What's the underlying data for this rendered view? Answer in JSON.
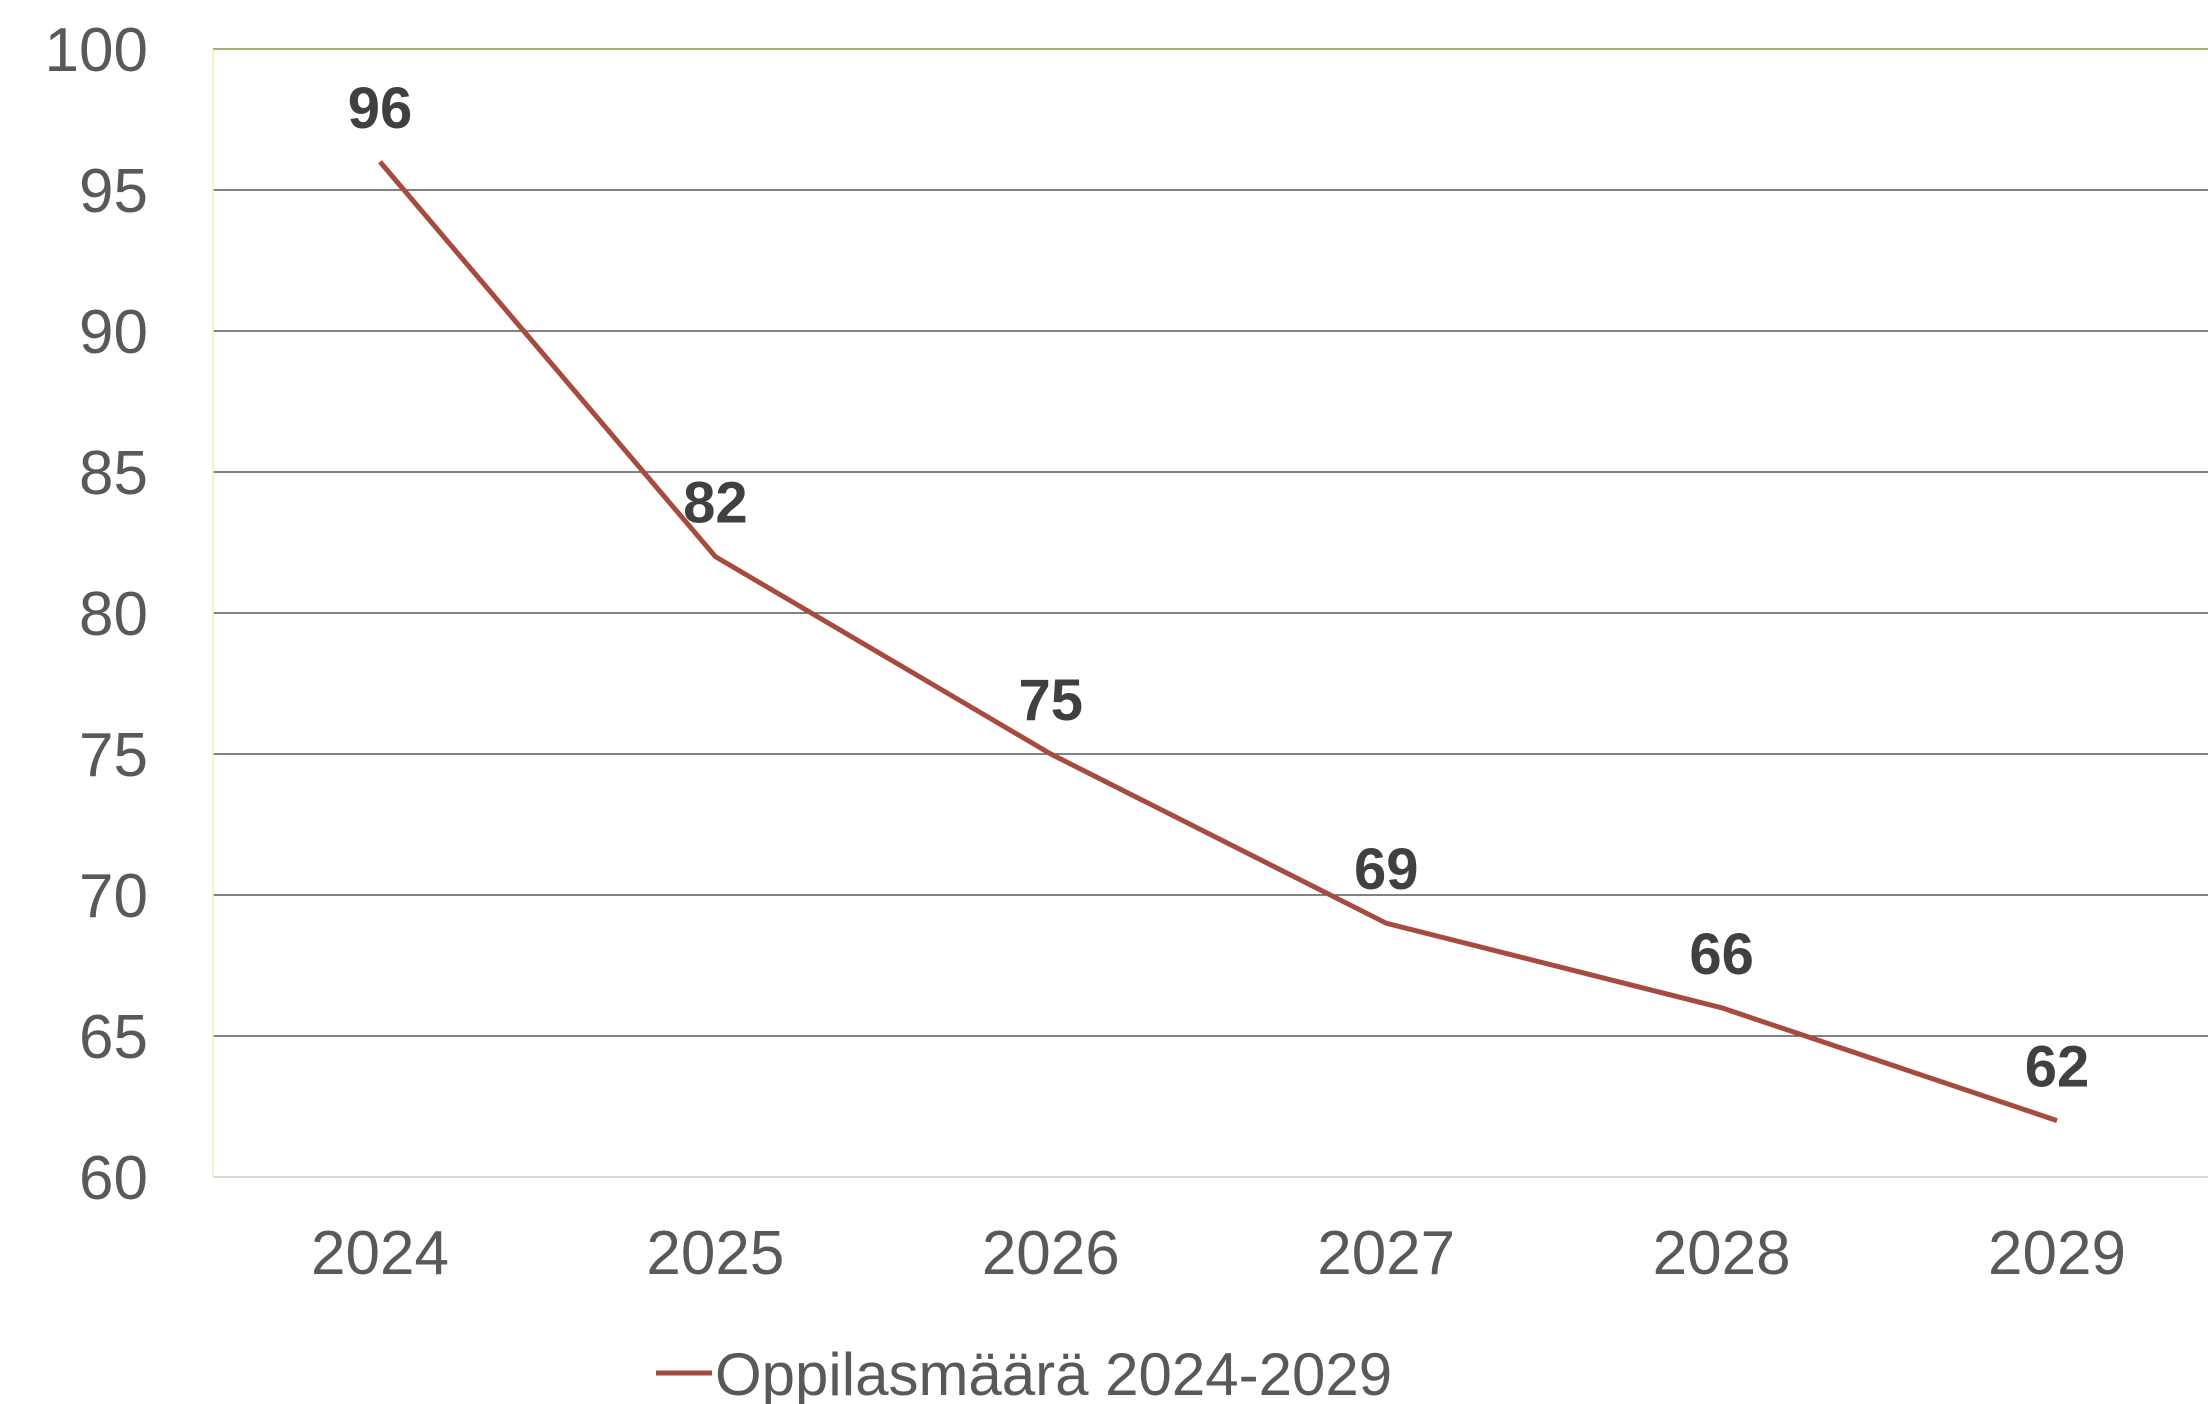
{
  "chart_data": {
    "type": "line",
    "categories": [
      "2024",
      "2025",
      "2026",
      "2027",
      "2028",
      "2029"
    ],
    "series": [
      {
        "name": "Oppilasmäärä 2024-2029",
        "values": [
          96,
          82,
          75,
          69,
          66,
          62
        ],
        "color": "#A84B3F"
      }
    ],
    "y_ticks": [
      "100",
      "95",
      "90",
      "85",
      "80",
      "75",
      "70",
      "65",
      "60"
    ],
    "ylim": [
      60,
      100
    ],
    "y_step": 5,
    "grid": true,
    "data_labels": [
      "96",
      "82",
      "75",
      "69",
      "66",
      "62"
    ],
    "legend_position": "bottom",
    "colors": {
      "grid": "#595959",
      "top_border": "#7F9A3F",
      "left_border": "#E6F0B8",
      "axis": "#D9D9D9",
      "text": "#595959",
      "data_label": "#404040"
    }
  }
}
